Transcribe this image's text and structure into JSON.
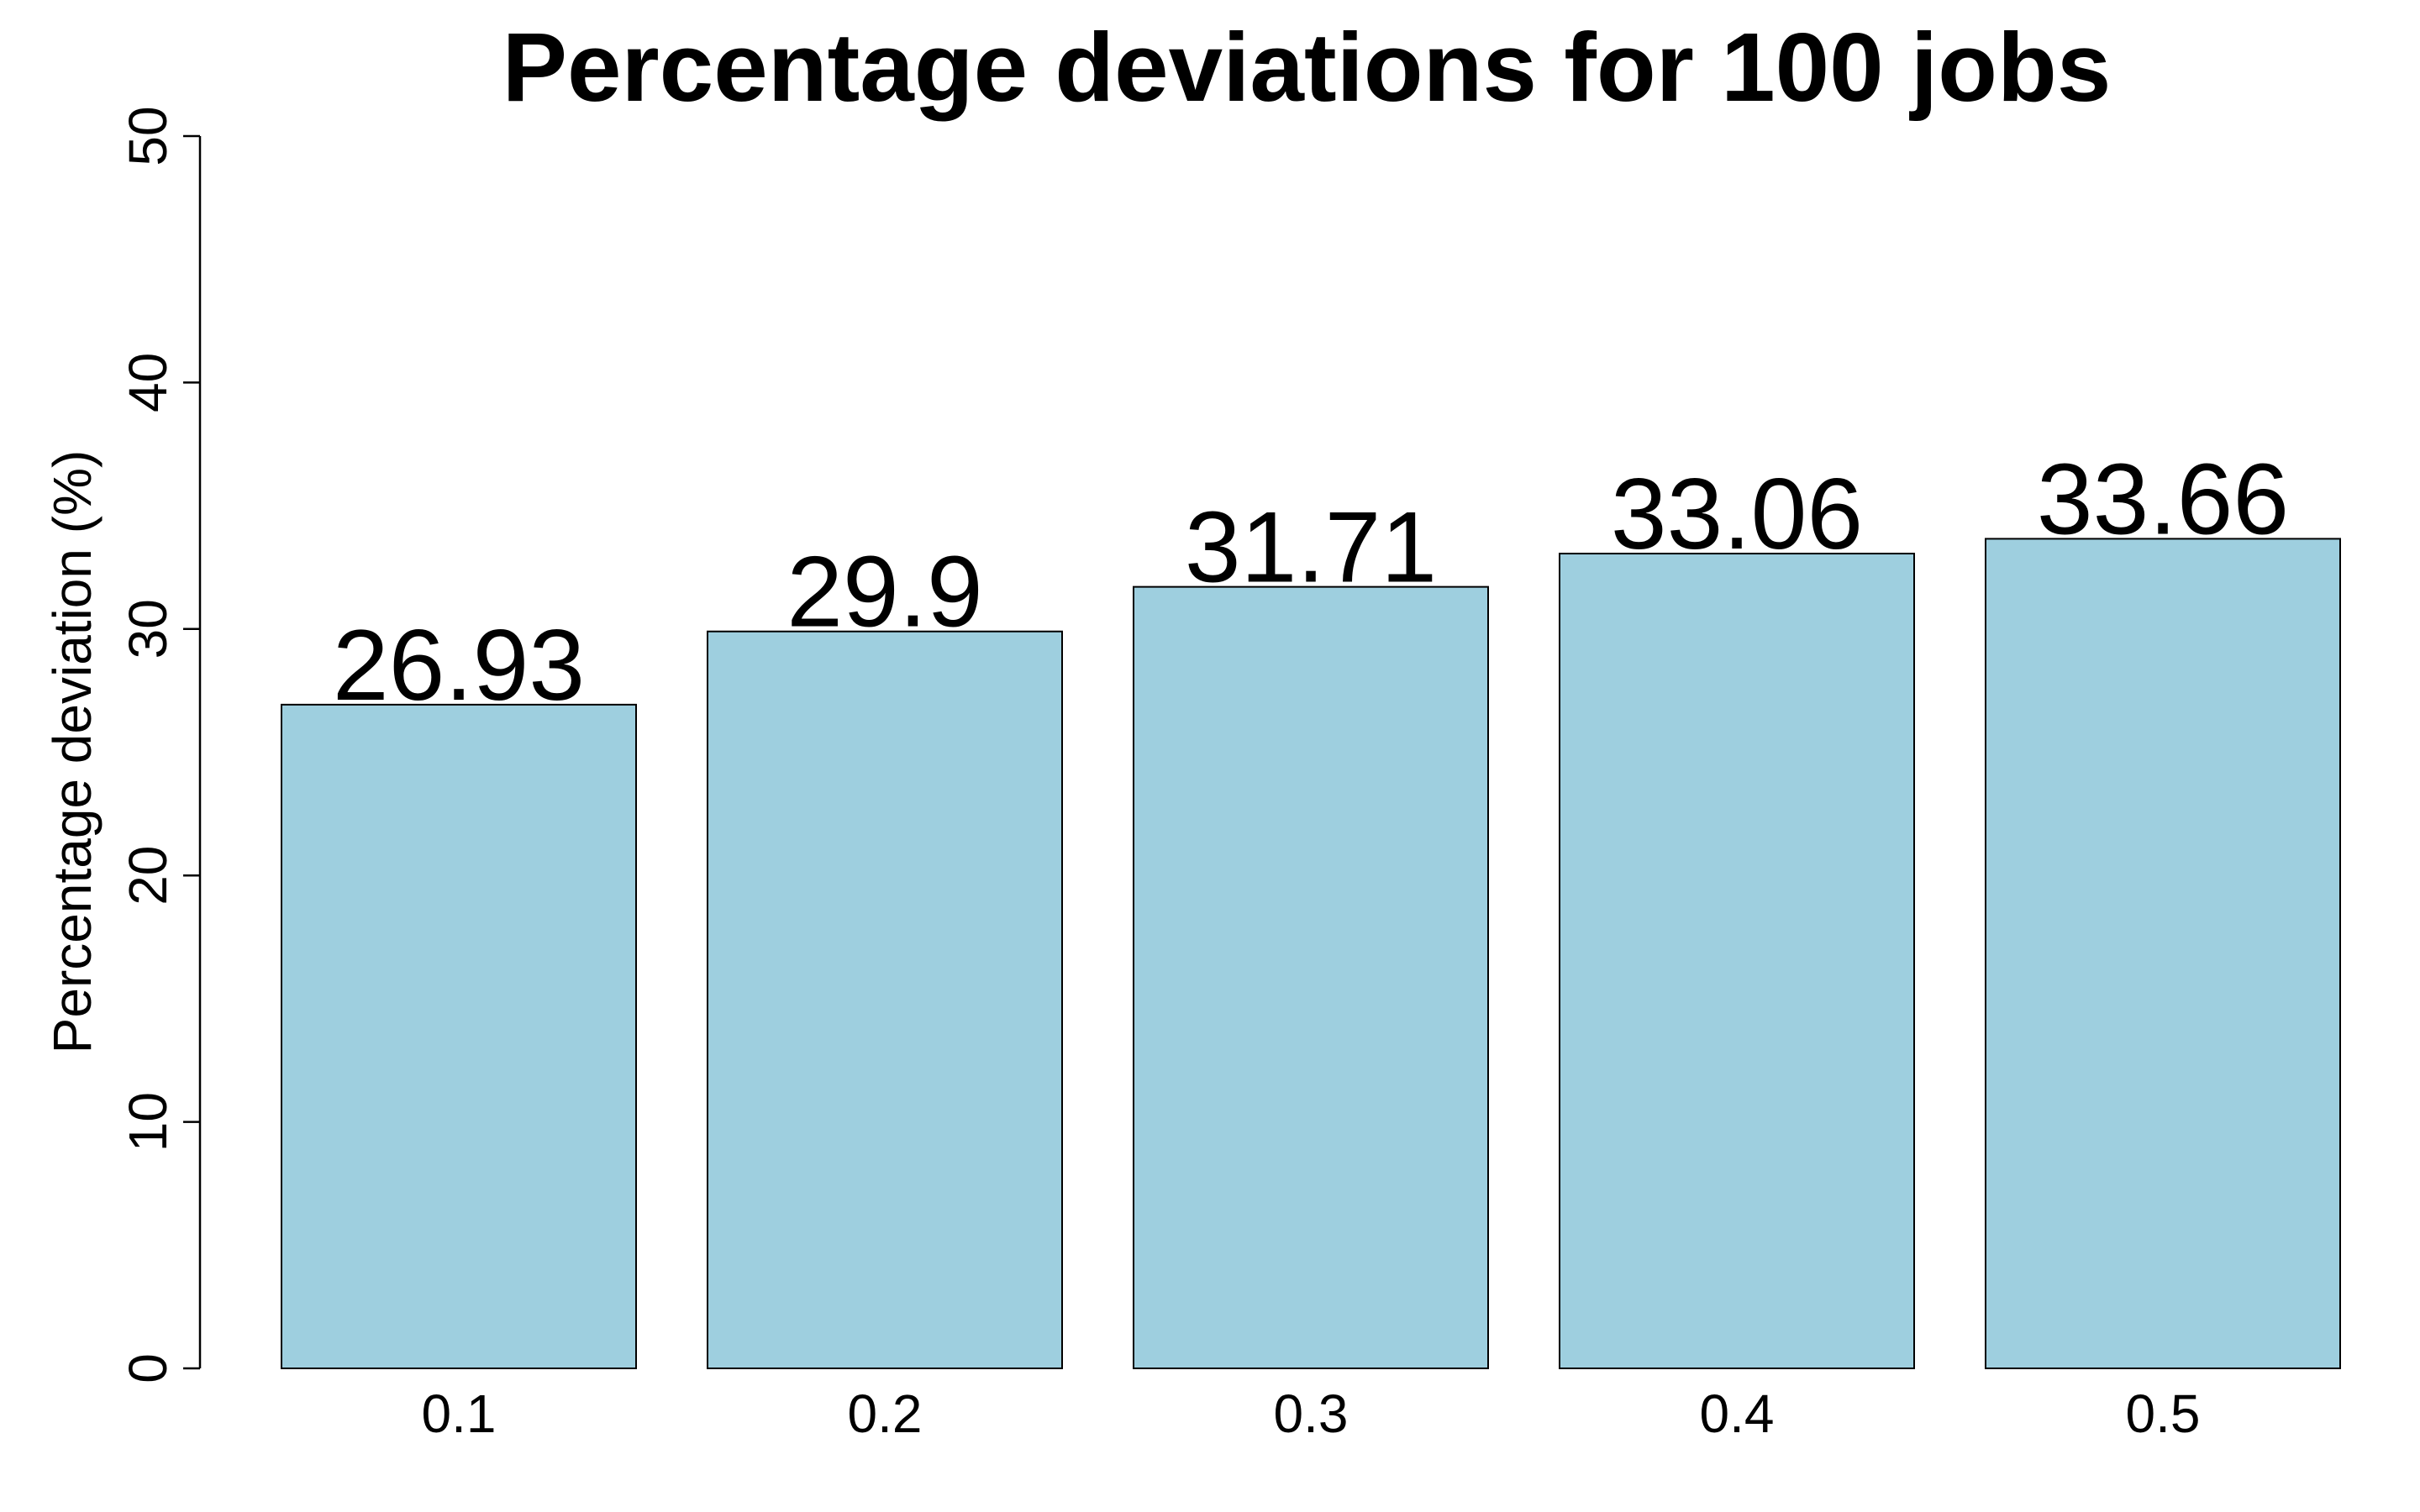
{
  "chart_data": {
    "type": "bar",
    "title": "Percentage deviations for 100 jobs",
    "xlabel": "",
    "ylabel": "Percentage deviation (%)",
    "categories": [
      "0.1",
      "0.2",
      "0.3",
      "0.4",
      "0.5"
    ],
    "values": [
      26.93,
      29.9,
      31.71,
      33.06,
      33.66
    ],
    "data_labels": [
      "26.93",
      "29.9",
      "31.71",
      "33.06",
      "33.66"
    ],
    "ylim": [
      0,
      50
    ],
    "yticks": [
      0,
      10,
      20,
      30,
      40,
      50
    ],
    "ytick_labels": [
      "0",
      "10",
      "20",
      "30",
      "40",
      "50"
    ],
    "grid": false,
    "legend": "none",
    "bar_color": "#9ecfdf",
    "bar_border_color": "#000000"
  }
}
